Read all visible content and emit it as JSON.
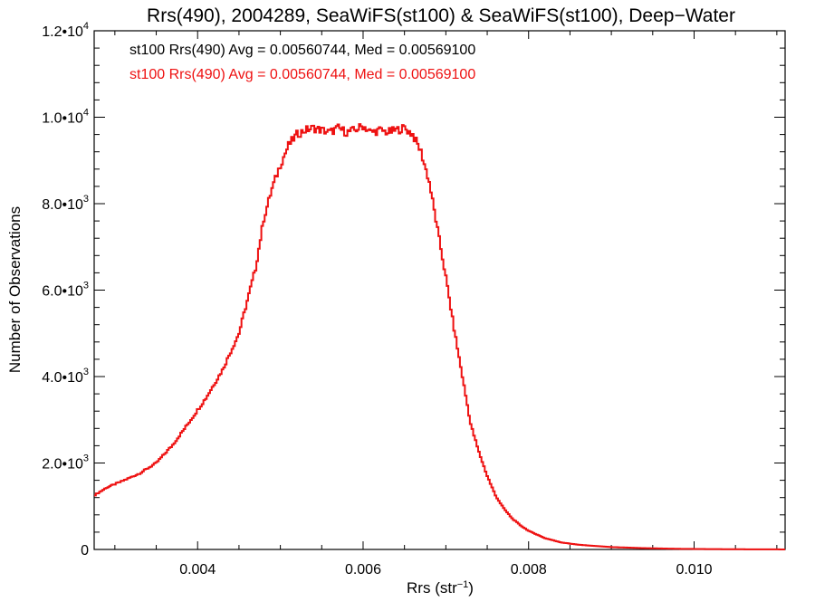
{
  "chart_data": {
    "type": "histogram",
    "title": "Rrs(490), 2004289, SeaWiFS(st100) & SeaWiFS(st100), Deep−Water",
    "xlabel": {
      "base": "Rrs (str",
      "sup": "−1",
      "end": ")"
    },
    "ylabel": "Number of Observations",
    "xlim": [
      0.00275,
      0.0111
    ],
    "ylim": [
      0,
      12000
    ],
    "x_ticks": [
      {
        "value": 0.004,
        "label": "0.004"
      },
      {
        "value": 0.006,
        "label": "0.006"
      },
      {
        "value": 0.008,
        "label": "0.008"
      },
      {
        "value": 0.01,
        "label": "0.010"
      }
    ],
    "y_ticks": [
      {
        "value": 0,
        "mant": "0",
        "exp": ""
      },
      {
        "value": 2000,
        "mant": "2.0•10",
        "exp": "3"
      },
      {
        "value": 4000,
        "mant": "4.0•10",
        "exp": "3"
      },
      {
        "value": 6000,
        "mant": "6.0•10",
        "exp": "3"
      },
      {
        "value": 8000,
        "mant": "8.0•10",
        "exp": "3"
      },
      {
        "value": 10000,
        "mant": "1.0•10",
        "exp": "4"
      },
      {
        "value": 12000,
        "mant": "1.2•10",
        "exp": "4"
      }
    ],
    "legend": [
      {
        "text": "st100 Rrs(490) Avg = 0.00560744, Med = 0.00569100",
        "color": "#000000"
      },
      {
        "text": "st100 Rrs(490) Avg = 0.00560744, Med = 0.00569100",
        "color": "#ee1111"
      }
    ],
    "series": [
      {
        "color": "#ee1111",
        "points": [
          [
            0.00275,
            1250
          ],
          [
            0.0029,
            1430
          ],
          [
            0.0031,
            1590
          ],
          [
            0.0033,
            1760
          ],
          [
            0.0035,
            2000
          ],
          [
            0.0037,
            2420
          ],
          [
            0.0039,
            2950
          ],
          [
            0.0041,
            3500
          ],
          [
            0.0043,
            4150
          ],
          [
            0.0045,
            5000
          ],
          [
            0.0046,
            5750
          ],
          [
            0.0047,
            6500
          ],
          [
            0.0048,
            7650
          ],
          [
            0.0049,
            8350
          ],
          [
            0.005,
            8900
          ],
          [
            0.0051,
            9350
          ],
          [
            0.0052,
            9600
          ],
          [
            0.0053,
            9700
          ],
          [
            0.0054,
            9750
          ],
          [
            0.0055,
            9700
          ],
          [
            0.0056,
            9650
          ],
          [
            0.0057,
            9750
          ],
          [
            0.0058,
            9650
          ],
          [
            0.0059,
            9700
          ],
          [
            0.006,
            9800
          ],
          [
            0.0061,
            9650
          ],
          [
            0.0062,
            9700
          ],
          [
            0.0063,
            9650
          ],
          [
            0.0064,
            9700
          ],
          [
            0.0065,
            9750
          ],
          [
            0.0066,
            9600
          ],
          [
            0.0067,
            9200
          ],
          [
            0.0068,
            8500
          ],
          [
            0.0069,
            7400
          ],
          [
            0.007,
            6300
          ],
          [
            0.0071,
            5100
          ],
          [
            0.0072,
            4000
          ],
          [
            0.0073,
            2900
          ],
          [
            0.0074,
            2250
          ],
          [
            0.0075,
            1700
          ],
          [
            0.0076,
            1250
          ],
          [
            0.0077,
            950
          ],
          [
            0.0078,
            720
          ],
          [
            0.0079,
            560
          ],
          [
            0.008,
            430
          ],
          [
            0.0082,
            260
          ],
          [
            0.0084,
            160
          ],
          [
            0.0086,
            110
          ],
          [
            0.0088,
            80
          ],
          [
            0.009,
            55
          ],
          [
            0.0094,
            30
          ],
          [
            0.0098,
            15
          ],
          [
            0.0102,
            8
          ],
          [
            0.0106,
            4
          ],
          [
            0.0111,
            1
          ]
        ]
      }
    ]
  }
}
